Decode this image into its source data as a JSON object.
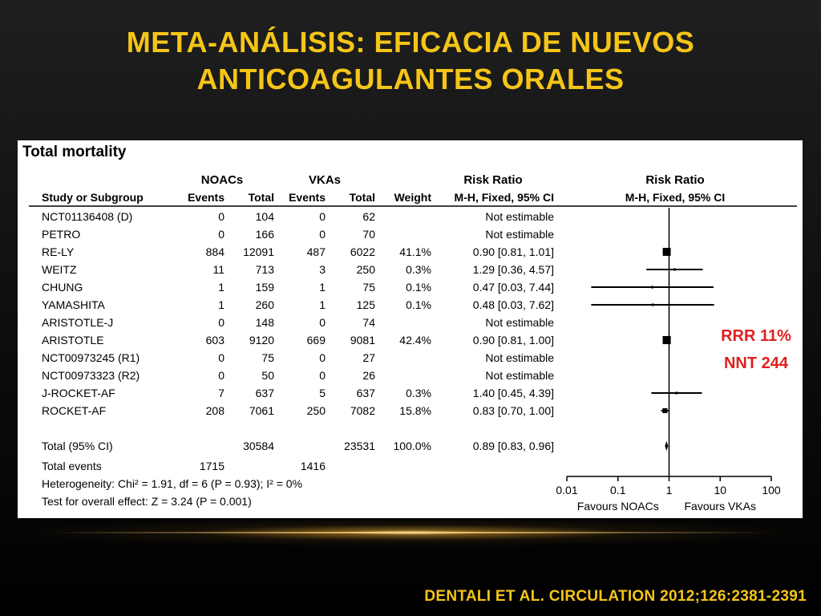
{
  "slide": {
    "title_line1": "META-ANÁLISIS: EFICACIA DE NUEVOS",
    "title_line2": "ANTICOAGULANTES ORALES",
    "citation": "DENTALI ET AL.  CIRCULATION 2012;126:2381-2391",
    "accent_color": "#f5c518",
    "callout_color": "#e02020"
  },
  "chart_data": {
    "type": "forest",
    "title": "Total mortality",
    "group_headers": {
      "noacs": "NOACs",
      "vkas": "VKAs",
      "risk_ratio": "Risk Ratio",
      "plot_risk_ratio": "Risk Ratio"
    },
    "columns": [
      "Study or Subgroup",
      "Events",
      "Total",
      "Events",
      "Total",
      "Weight",
      "M-H, Fixed, 95% CI"
    ],
    "plot_subheader": "M-H, Fixed, 95% CI",
    "scale": "log",
    "x_ticks": [
      "0.01",
      "0.1",
      "1",
      "10",
      "100"
    ],
    "x_tick_values": [
      0.01,
      0.1,
      1,
      10,
      100
    ],
    "xlabel_left": "Favours NOACs",
    "xlabel_right": "Favours VKAs",
    "studies": [
      {
        "name": "NCT01136408 (D)",
        "e1": "0",
        "t1": "104",
        "e2": "0",
        "t2": "62",
        "weight": "",
        "ci_text": "Not estimable",
        "rr": null,
        "lo": null,
        "hi": null,
        "w": 0
      },
      {
        "name": "PETRO",
        "e1": "0",
        "t1": "166",
        "e2": "0",
        "t2": "70",
        "weight": "",
        "ci_text": "Not estimable",
        "rr": null,
        "lo": null,
        "hi": null,
        "w": 0
      },
      {
        "name": "RE-LY",
        "e1": "884",
        "t1": "12091",
        "e2": "487",
        "t2": "6022",
        "weight": "41.1%",
        "ci_text": "0.90 [0.81, 1.01]",
        "rr": 0.9,
        "lo": 0.81,
        "hi": 1.01,
        "w": 41.1
      },
      {
        "name": "WEITZ",
        "e1": "11",
        "t1": "713",
        "e2": "3",
        "t2": "250",
        "weight": "0.3%",
        "ci_text": "1.29 [0.36, 4.57]",
        "rr": 1.29,
        "lo": 0.36,
        "hi": 4.57,
        "w": 0.3
      },
      {
        "name": "CHUNG",
        "e1": "1",
        "t1": "159",
        "e2": "1",
        "t2": "75",
        "weight": "0.1%",
        "ci_text": "0.47 [0.03, 7.44]",
        "rr": 0.47,
        "lo": 0.03,
        "hi": 7.44,
        "w": 0.1
      },
      {
        "name": "YAMASHITA",
        "e1": "1",
        "t1": "260",
        "e2": "1",
        "t2": "125",
        "weight": "0.1%",
        "ci_text": "0.48 [0.03, 7.62]",
        "rr": 0.48,
        "lo": 0.03,
        "hi": 7.62,
        "w": 0.1
      },
      {
        "name": "ARISTOTLE-J",
        "e1": "0",
        "t1": "148",
        "e2": "0",
        "t2": "74",
        "weight": "",
        "ci_text": "Not estimable",
        "rr": null,
        "lo": null,
        "hi": null,
        "w": 0
      },
      {
        "name": "ARISTOTLE",
        "e1": "603",
        "t1": "9120",
        "e2": "669",
        "t2": "9081",
        "weight": "42.4%",
        "ci_text": "0.90 [0.81, 1.00]",
        "rr": 0.9,
        "lo": 0.81,
        "hi": 1.0,
        "w": 42.4
      },
      {
        "name": "NCT00973245 (R1)",
        "e1": "0",
        "t1": "75",
        "e2": "0",
        "t2": "27",
        "weight": "",
        "ci_text": "Not estimable",
        "rr": null,
        "lo": null,
        "hi": null,
        "w": 0
      },
      {
        "name": "NCT00973323 (R2)",
        "e1": "0",
        "t1": "50",
        "e2": "0",
        "t2": "26",
        "weight": "",
        "ci_text": "Not estimable",
        "rr": null,
        "lo": null,
        "hi": null,
        "w": 0
      },
      {
        "name": "J-ROCKET-AF",
        "e1": "7",
        "t1": "637",
        "e2": "5",
        "t2": "637",
        "weight": "0.3%",
        "ci_text": "1.40 [0.45, 4.39]",
        "rr": 1.4,
        "lo": 0.45,
        "hi": 4.39,
        "w": 0.3
      },
      {
        "name": "ROCKET-AF",
        "e1": "208",
        "t1": "7061",
        "e2": "250",
        "t2": "7082",
        "weight": "15.8%",
        "ci_text": "0.83 [0.70, 1.00]",
        "rr": 0.83,
        "lo": 0.7,
        "hi": 1.0,
        "w": 15.8
      }
    ],
    "total": {
      "name": "Total (95% CI)",
      "t1": "30584",
      "t2": "23531",
      "weight": "100.0%",
      "ci_text": "0.89 [0.83, 0.96]",
      "rr": 0.89,
      "lo": 0.83,
      "hi": 0.96
    },
    "total_events": {
      "name": "Total events",
      "e1": "1715",
      "e2": "1416"
    },
    "heterogeneity": "Heterogeneity: Chi² = 1.91, df = 6 (P = 0.93); I² = 0%",
    "overall_effect": "Test for overall effect: Z = 3.24 (P = 0.001)",
    "annotations": [
      "RRR 11%",
      "NNT 244"
    ]
  }
}
